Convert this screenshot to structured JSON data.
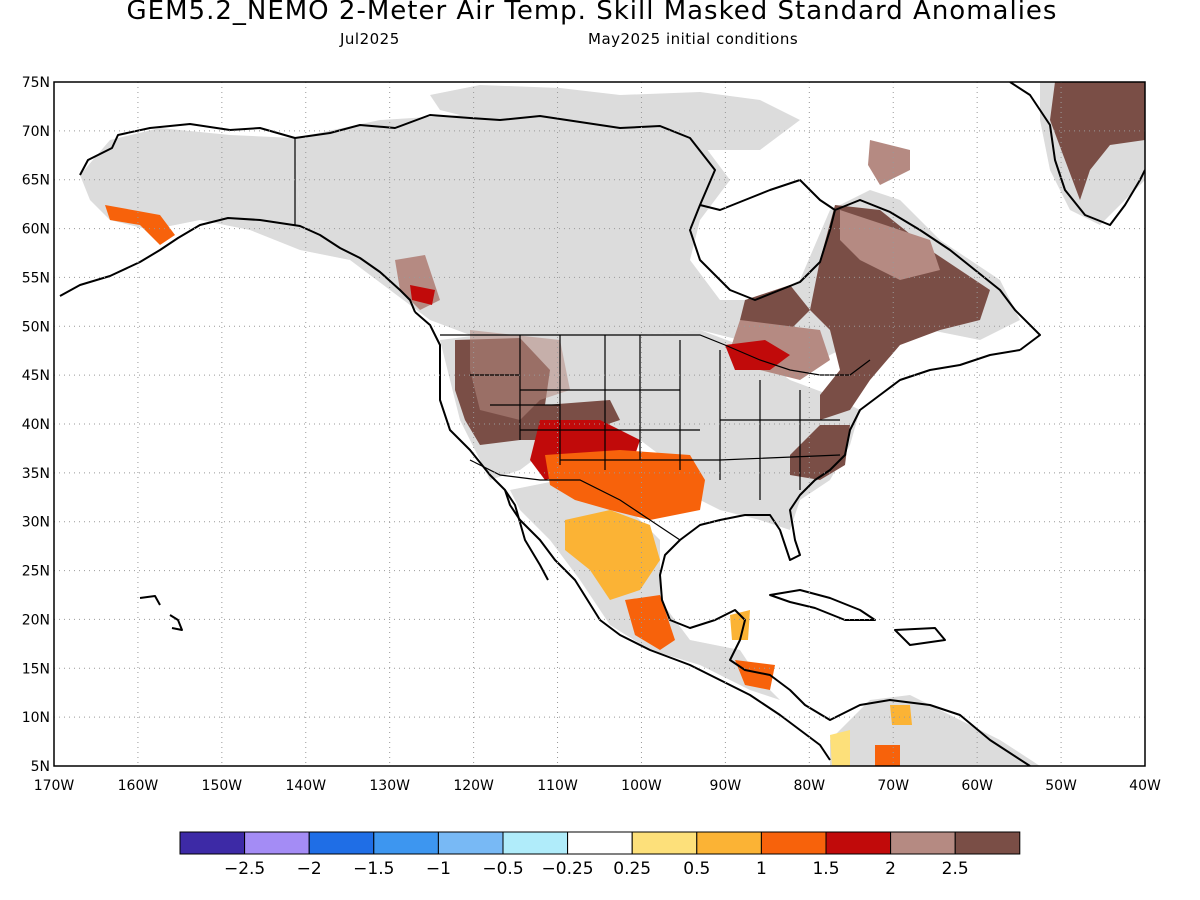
{
  "header": {
    "title": "GEM5.2_NEMO 2-Meter Air Temp. Skill Masked Standard Anomalies",
    "target_month": "Jul2025",
    "initial_conditions": "May2025 initial conditions"
  },
  "map": {
    "projection": "cylindrical equidistant",
    "lon_range": [
      -170,
      -40
    ],
    "lat_range": [
      5,
      75
    ],
    "gridlines": "dotted",
    "lat_ticks": [
      "75N",
      "70N",
      "65N",
      "60N",
      "55N",
      "50N",
      "45N",
      "40N",
      "35N",
      "30N",
      "25N",
      "20N",
      "15N",
      "10N",
      "5N"
    ],
    "lon_ticks": [
      "170W",
      "160W",
      "150W",
      "140W",
      "130W",
      "120W",
      "110W",
      "100W",
      "90W",
      "80W",
      "70W",
      "60W",
      "50W",
      "40W"
    ],
    "masked_color": "#dcdcdc"
  },
  "colorbar": {
    "colors": [
      "#3d2aa6",
      "#a48cf5",
      "#1f6ee6",
      "#3d96f0",
      "#78b9f5",
      "#b0ecfa",
      "#ffffff",
      "#fde07a",
      "#fbb335",
      "#f7620b",
      "#c10a0a",
      "#b58a82",
      "#7a4e46"
    ],
    "labels": [
      "-2.5",
      "-2",
      "-1.5",
      "-1",
      "-0.5",
      "-0.25",
      "0.25",
      "0.5",
      "1",
      "1.5",
      "2",
      "2.5"
    ]
  }
}
